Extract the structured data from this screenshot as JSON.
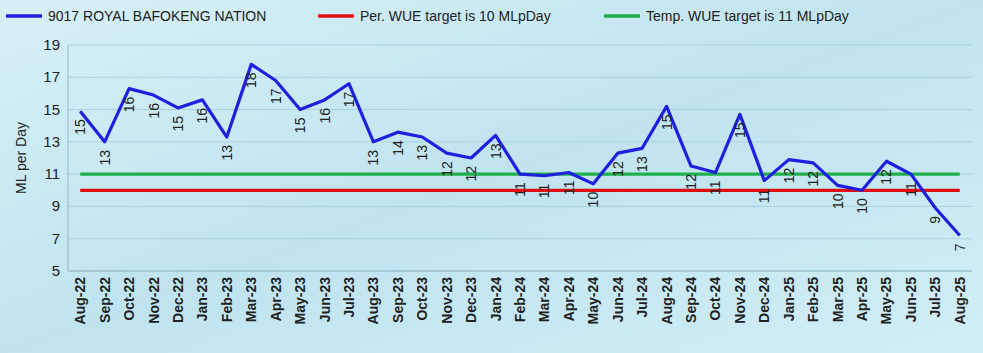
{
  "chart_data": {
    "type": "line",
    "y_label": "ML per Day",
    "categories": [
      "Aug-22",
      "Sep-22",
      "Oct-22",
      "Nov-22",
      "Dec-22",
      "Jan-23",
      "Feb-23",
      "Mar-23",
      "Apr-23",
      "May-23",
      "Jun-23",
      "Jul-23",
      "Aug-23",
      "Sep-23",
      "Oct-23",
      "Nov-23",
      "Dec-23",
      "Jan-24",
      "Feb-24",
      "Mar-24",
      "Apr-24",
      "May-24",
      "Jun-24",
      "Jul-24",
      "Aug-24",
      "Sep-24",
      "Oct-24",
      "Nov-24",
      "Dec-24",
      "Jan-25",
      "Feb-25",
      "Mar-25",
      "Apr-25",
      "May-25",
      "Jun-25",
      "Jul-25",
      "Aug-25"
    ],
    "series": [
      {
        "name": "9017 ROYAL BAFOKENG NATION",
        "color": "#1f1fe0",
        "values": [
          14.9,
          13.0,
          16.3,
          15.9,
          15.1,
          15.6,
          13.3,
          17.8,
          16.8,
          15.0,
          15.6,
          16.6,
          13.0,
          13.6,
          13.3,
          12.3,
          12.0,
          13.4,
          11.0,
          10.9,
          11.1,
          10.4,
          12.3,
          12.6,
          15.2,
          11.5,
          11.1,
          14.7,
          10.6,
          11.9,
          11.7,
          10.3,
          10.0,
          11.8,
          11.0,
          8.9,
          7.2
        ],
        "value_labels": [
          "15",
          "13",
          "16",
          "16",
          "15",
          "16",
          "13",
          "18",
          "17",
          "15",
          "16",
          "17",
          "13",
          "14",
          "13",
          "12",
          "12",
          "13",
          "11",
          "11",
          "11",
          "10",
          "12",
          "13",
          "15",
          "12",
          "11",
          "15",
          "11",
          "12",
          "12",
          "10",
          "10",
          "12",
          "11",
          "9",
          "7"
        ]
      },
      {
        "name": "Per. WUE target is 10 MLpDay",
        "color": "#e01010",
        "values": [
          10,
          10,
          10,
          10,
          10,
          10,
          10,
          10,
          10,
          10,
          10,
          10,
          10,
          10,
          10,
          10,
          10,
          10,
          10,
          10,
          10,
          10,
          10,
          10,
          10,
          10,
          10,
          10,
          10,
          10,
          10,
          10,
          10,
          10,
          10,
          10,
          10
        ]
      },
      {
        "name": "Temp. WUE target is 11 MLpDay",
        "color": "#1fb04a",
        "values": [
          11,
          11,
          11,
          11,
          11,
          11,
          11,
          11,
          11,
          11,
          11,
          11,
          11,
          11,
          11,
          11,
          11,
          11,
          11,
          11,
          11,
          11,
          11,
          11,
          11,
          11,
          11,
          11,
          11,
          11,
          11,
          11,
          11,
          11,
          11,
          11,
          11
        ]
      }
    ],
    "ylim": [
      5,
      19
    ],
    "yticks": [
      5,
      7,
      9,
      11,
      13,
      15,
      17,
      19
    ],
    "grid": true,
    "legend": "top",
    "data_labels": true
  }
}
